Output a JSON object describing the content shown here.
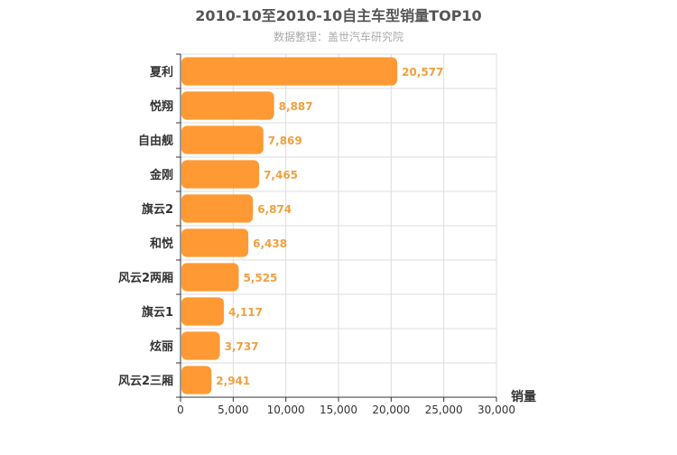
{
  "chart_data": {
    "type": "bar",
    "orientation": "horizontal",
    "title": "2010-10至2010-10自主车型销量TOP10",
    "subtitle": "数据整理：盖世汽车研究院",
    "xlabel": "销量",
    "ylabel": "",
    "categories": [
      "夏利",
      "悦翔",
      "自由舰",
      "金刚",
      "旗云2",
      "和悦",
      "风云2两厢",
      "旗云1",
      "炫丽",
      "风云2三厢"
    ],
    "values": [
      20577,
      8887,
      7869,
      7465,
      6874,
      6438,
      5525,
      4117,
      3737,
      2941
    ],
    "value_labels": [
      "20,577",
      "8,887",
      "7,869",
      "7,465",
      "6,874",
      "6,438",
      "5,525",
      "4,117",
      "3,737",
      "2,941"
    ],
    "xlim": [
      0,
      30000
    ],
    "xticks": [
      0,
      5000,
      10000,
      15000,
      20000,
      25000,
      30000
    ],
    "xtick_labels": [
      "0",
      "5,000",
      "10,000",
      "15,000",
      "20,000",
      "25,000",
      "30,000"
    ],
    "grid": true,
    "legend": "none",
    "colors": {
      "bar": "#ff9933",
      "value_label": "#f0a040",
      "grid": "#dddddd",
      "axis": "#333333"
    }
  }
}
